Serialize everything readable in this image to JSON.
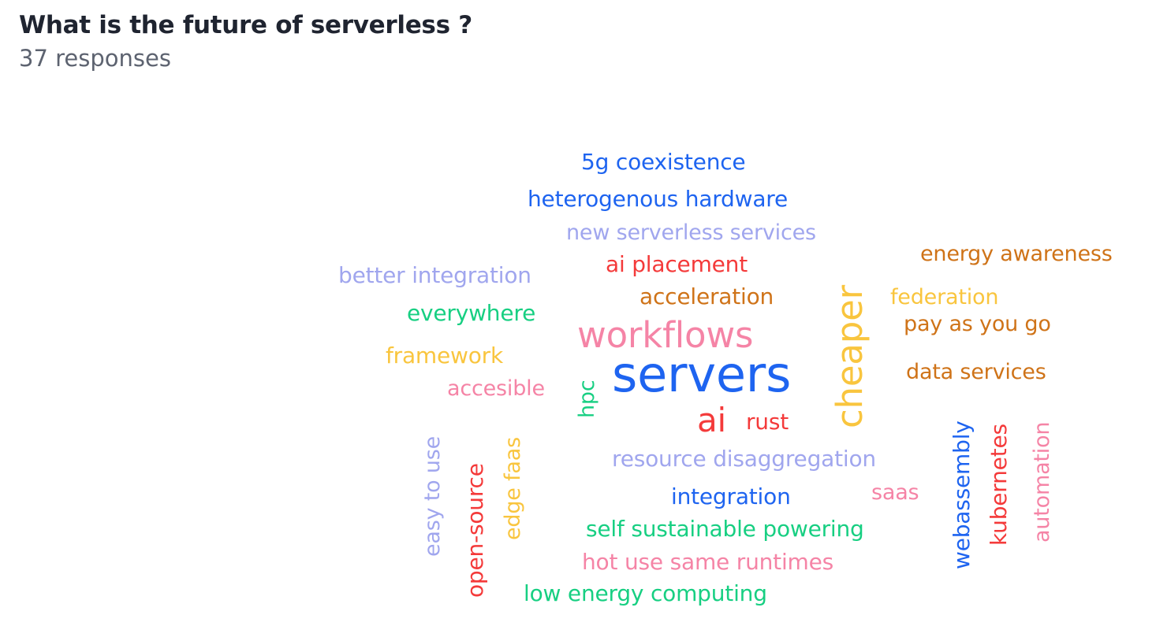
{
  "question": "What is the future of serverless ?",
  "response_count": "37 responses",
  "colors": {
    "blue": "#1e64f0",
    "lavender": "#a0a6ee",
    "red": "#f43a3a",
    "orange": "#cf7318",
    "yellow": "#f9c53e",
    "green": "#17cf82",
    "pink": "#f584a6"
  },
  "words": [
    {
      "text": "5g coexistence",
      "color": "blue"
    },
    {
      "text": "heterogenous hardware",
      "color": "blue"
    },
    {
      "text": "new serverless services",
      "color": "lavender"
    },
    {
      "text": "ai placement",
      "color": "red"
    },
    {
      "text": "energy awareness",
      "color": "orange"
    },
    {
      "text": "better integration",
      "color": "lavender"
    },
    {
      "text": "acceleration",
      "color": "orange"
    },
    {
      "text": "federation",
      "color": "yellow"
    },
    {
      "text": "everywhere",
      "color": "green"
    },
    {
      "text": "pay as you go",
      "color": "orange"
    },
    {
      "text": "workflows",
      "color": "pink"
    },
    {
      "text": "framework",
      "color": "yellow"
    },
    {
      "text": "servers",
      "color": "blue"
    },
    {
      "text": "data services",
      "color": "orange"
    },
    {
      "text": "accesible",
      "color": "pink"
    },
    {
      "text": "cheaper",
      "color": "yellow"
    },
    {
      "text": "hpc",
      "color": "green"
    },
    {
      "text": "ai",
      "color": "red"
    },
    {
      "text": "rust",
      "color": "red"
    },
    {
      "text": "resource disaggregation",
      "color": "lavender"
    },
    {
      "text": "saas",
      "color": "pink"
    },
    {
      "text": "integration",
      "color": "blue"
    },
    {
      "text": "self sustainable powering",
      "color": "green"
    },
    {
      "text": "hot use same runtimes",
      "color": "pink"
    },
    {
      "text": "low energy computing",
      "color": "green"
    },
    {
      "text": "easy to use",
      "color": "lavender"
    },
    {
      "text": "open-source",
      "color": "red"
    },
    {
      "text": "edge faas",
      "color": "yellow"
    },
    {
      "text": "webassembly",
      "color": "blue"
    },
    {
      "text": "kubernetes",
      "color": "red"
    },
    {
      "text": "automation",
      "color": "pink"
    }
  ]
}
